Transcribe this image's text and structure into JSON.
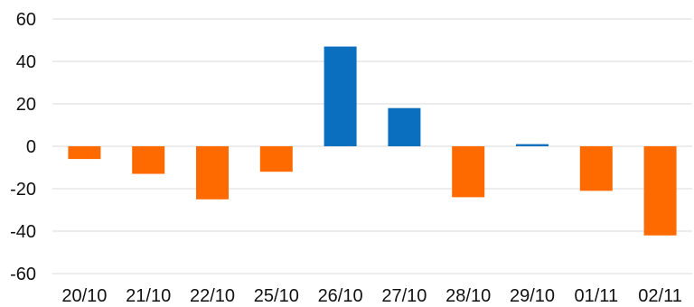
{
  "chart_data": {
    "type": "bar",
    "title": "",
    "xlabel": "",
    "ylabel": "",
    "categories": [
      "20/10",
      "21/10",
      "22/10",
      "25/10",
      "26/10",
      "27/10",
      "28/10",
      "29/10",
      "01/11",
      "02/11"
    ],
    "values": [
      -6,
      -13,
      -25,
      -12,
      47,
      18,
      -24,
      1,
      -21,
      -42
    ],
    "ylim": [
      -60,
      60
    ],
    "yticks": [
      60,
      40,
      20,
      0,
      -20,
      -40,
      -60
    ],
    "grid": true,
    "legend": "none",
    "colors": {
      "positive": "#0b6fbf",
      "negative": "#ff6a00"
    }
  }
}
